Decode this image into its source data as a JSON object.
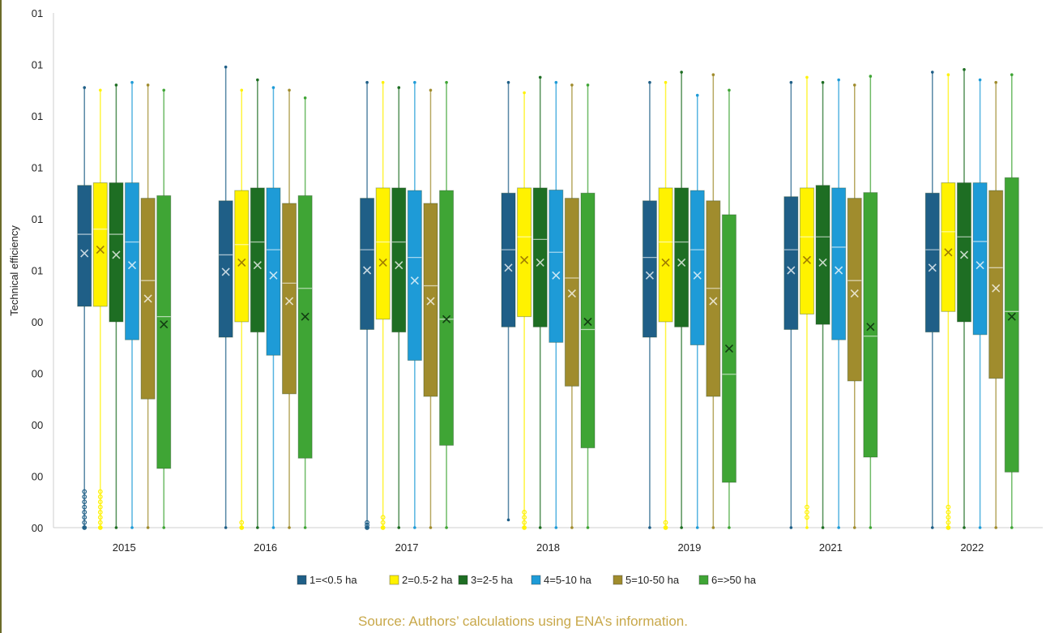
{
  "colors": {
    "axis": "#cfcfcf",
    "text": "#222222",
    "source": "#c8a84a"
  },
  "source_note": "Source: Authors’ calculations using ENA’s information.",
  "chart_data": {
    "type": "boxplot",
    "title": "",
    "xlabel": "",
    "ylabel": "Technical efficiency",
    "ylim": [
      0,
      1
    ],
    "ytick_labels": [
      "00",
      "00",
      "00",
      "00",
      "00",
      "01",
      "01",
      "01",
      "01",
      "01",
      "01"
    ],
    "legend_position": "bottom",
    "categories": [
      "2015",
      "2016",
      "2017",
      "2018",
      "2019",
      "2021",
      "2022"
    ],
    "series": [
      {
        "name": "1=<0.5 ha",
        "color": "#1f5f87",
        "stats": [
          {
            "min": 0.0,
            "q1": 0.43,
            "median": 0.57,
            "q3": 0.665,
            "max": 0.855,
            "mean": 0.533,
            "outliers": [
              0.0,
              0.01,
              0.02,
              0.03,
              0.04,
              0.05,
              0.06,
              0.07
            ]
          },
          {
            "min": 0.0,
            "q1": 0.37,
            "median": 0.53,
            "q3": 0.635,
            "max": 0.895,
            "mean": 0.497,
            "outliers": []
          },
          {
            "min": 0.0,
            "q1": 0.385,
            "median": 0.54,
            "q3": 0.64,
            "max": 0.865,
            "mean": 0.5,
            "outliers": [
              0.0,
              0.005,
              0.01
            ]
          },
          {
            "min": 0.015,
            "q1": 0.39,
            "median": 0.54,
            "q3": 0.65,
            "max": 0.865,
            "mean": 0.505,
            "outliers": []
          },
          {
            "min": 0.0,
            "q1": 0.37,
            "median": 0.525,
            "q3": 0.635,
            "max": 0.865,
            "mean": 0.49,
            "outliers": []
          },
          {
            "min": 0.0,
            "q1": 0.385,
            "median": 0.54,
            "q3": 0.643,
            "max": 0.865,
            "mean": 0.5,
            "outliers": []
          },
          {
            "min": 0.0,
            "q1": 0.38,
            "median": 0.54,
            "q3": 0.65,
            "max": 0.885,
            "mean": 0.505,
            "outliers": []
          }
        ]
      },
      {
        "name": "2=0.5-2 ha",
        "color": "#fff200",
        "stats": [
          {
            "min": 0.0,
            "q1": 0.43,
            "median": 0.58,
            "q3": 0.67,
            "max": 0.85,
            "mean": 0.54,
            "outliers": [
              0.0,
              0.01,
              0.02,
              0.03,
              0.04,
              0.05,
              0.06,
              0.07
            ]
          },
          {
            "min": 0.0,
            "q1": 0.4,
            "median": 0.55,
            "q3": 0.655,
            "max": 0.85,
            "mean": 0.515,
            "outliers": [
              0.0,
              0.01
            ]
          },
          {
            "min": 0.0,
            "q1": 0.405,
            "median": 0.555,
            "q3": 0.66,
            "max": 0.865,
            "mean": 0.515,
            "outliers": [
              0.0,
              0.01,
              0.02
            ]
          },
          {
            "min": 0.0,
            "q1": 0.41,
            "median": 0.565,
            "q3": 0.66,
            "max": 0.845,
            "mean": 0.52,
            "outliers": [
              0.0,
              0.01,
              0.02,
              0.03
            ]
          },
          {
            "min": 0.0,
            "q1": 0.4,
            "median": 0.555,
            "q3": 0.66,
            "max": 0.865,
            "mean": 0.515,
            "outliers": [
              0.0,
              0.01
            ]
          },
          {
            "min": 0.0,
            "q1": 0.415,
            "median": 0.565,
            "q3": 0.66,
            "max": 0.875,
            "mean": 0.52,
            "outliers": [
              0.02,
              0.03,
              0.04
            ]
          },
          {
            "min": 0.0,
            "q1": 0.42,
            "median": 0.575,
            "q3": 0.67,
            "max": 0.88,
            "mean": 0.535,
            "outliers": [
              0.0,
              0.01,
              0.02,
              0.03,
              0.04
            ]
          }
        ]
      },
      {
        "name": "3=2-5 ha",
        "color": "#1e6e23",
        "stats": [
          {
            "min": 0.0,
            "q1": 0.4,
            "median": 0.57,
            "q3": 0.67,
            "max": 0.86,
            "mean": 0.53,
            "outliers": []
          },
          {
            "min": 0.0,
            "q1": 0.38,
            "median": 0.555,
            "q3": 0.66,
            "max": 0.87,
            "mean": 0.51,
            "outliers": []
          },
          {
            "min": 0.0,
            "q1": 0.38,
            "median": 0.555,
            "q3": 0.66,
            "max": 0.855,
            "mean": 0.51,
            "outliers": []
          },
          {
            "min": 0.0,
            "q1": 0.39,
            "median": 0.56,
            "q3": 0.66,
            "max": 0.875,
            "mean": 0.515,
            "outliers": []
          },
          {
            "min": 0.0,
            "q1": 0.39,
            "median": 0.555,
            "q3": 0.66,
            "max": 0.885,
            "mean": 0.515,
            "outliers": []
          },
          {
            "min": 0.0,
            "q1": 0.395,
            "median": 0.565,
            "q3": 0.665,
            "max": 0.865,
            "mean": 0.515,
            "outliers": []
          },
          {
            "min": 0.0,
            "q1": 0.4,
            "median": 0.565,
            "q3": 0.67,
            "max": 0.89,
            "mean": 0.53,
            "outliers": []
          }
        ]
      },
      {
        "name": "4=5-10 ha",
        "color": "#1e9bd7",
        "stats": [
          {
            "min": 0.0,
            "q1": 0.365,
            "median": 0.555,
            "q3": 0.67,
            "max": 0.865,
            "mean": 0.51,
            "outliers": []
          },
          {
            "min": 0.0,
            "q1": 0.335,
            "median": 0.54,
            "q3": 0.66,
            "max": 0.855,
            "mean": 0.49,
            "outliers": []
          },
          {
            "min": 0.0,
            "q1": 0.325,
            "median": 0.525,
            "q3": 0.655,
            "max": 0.865,
            "mean": 0.48,
            "outliers": []
          },
          {
            "min": 0.0,
            "q1": 0.36,
            "median": 0.535,
            "q3": 0.656,
            "max": 0.865,
            "mean": 0.49,
            "outliers": []
          },
          {
            "min": 0.0,
            "q1": 0.355,
            "median": 0.54,
            "q3": 0.655,
            "max": 0.84,
            "mean": 0.49,
            "outliers": []
          },
          {
            "min": 0.0,
            "q1": 0.365,
            "median": 0.545,
            "q3": 0.66,
            "max": 0.87,
            "mean": 0.5,
            "outliers": []
          },
          {
            "min": 0.0,
            "q1": 0.375,
            "median": 0.556,
            "q3": 0.67,
            "max": 0.87,
            "mean": 0.51,
            "outliers": []
          }
        ]
      },
      {
        "name": "5=10-50 ha",
        "color": "#a08c2d",
        "stats": [
          {
            "min": 0.0,
            "q1": 0.25,
            "median": 0.48,
            "q3": 0.64,
            "max": 0.86,
            "mean": 0.445,
            "outliers": []
          },
          {
            "min": 0.0,
            "q1": 0.26,
            "median": 0.475,
            "q3": 0.63,
            "max": 0.85,
            "mean": 0.44,
            "outliers": []
          },
          {
            "min": 0.0,
            "q1": 0.255,
            "median": 0.47,
            "q3": 0.63,
            "max": 0.85,
            "mean": 0.44,
            "outliers": []
          },
          {
            "min": 0.0,
            "q1": 0.275,
            "median": 0.485,
            "q3": 0.64,
            "max": 0.86,
            "mean": 0.455,
            "outliers": []
          },
          {
            "min": 0.0,
            "q1": 0.255,
            "median": 0.465,
            "q3": 0.635,
            "max": 0.88,
            "mean": 0.44,
            "outliers": []
          },
          {
            "min": 0.0,
            "q1": 0.285,
            "median": 0.48,
            "q3": 0.64,
            "max": 0.86,
            "mean": 0.455,
            "outliers": []
          },
          {
            "min": 0.0,
            "q1": 0.29,
            "median": 0.505,
            "q3": 0.655,
            "max": 0.865,
            "mean": 0.465,
            "outliers": []
          }
        ]
      },
      {
        "name": "6=>50 ha",
        "color": "#3fa535",
        "stats": [
          {
            "min": 0.0,
            "q1": 0.115,
            "median": 0.41,
            "q3": 0.645,
            "max": 0.85,
            "mean": 0.395,
            "outliers": []
          },
          {
            "min": 0.0,
            "q1": 0.135,
            "median": 0.465,
            "q3": 0.645,
            "max": 0.835,
            "mean": 0.41,
            "outliers": []
          },
          {
            "min": 0.0,
            "q1": 0.16,
            "median": 0.405,
            "q3": 0.655,
            "max": 0.865,
            "mean": 0.405,
            "outliers": []
          },
          {
            "min": 0.0,
            "q1": 0.155,
            "median": 0.385,
            "q3": 0.65,
            "max": 0.86,
            "mean": 0.4,
            "outliers": []
          },
          {
            "min": 0.0,
            "q1": 0.088,
            "median": 0.298,
            "q3": 0.608,
            "max": 0.85,
            "mean": 0.348,
            "outliers": []
          },
          {
            "min": 0.0,
            "q1": 0.137,
            "median": 0.372,
            "q3": 0.651,
            "max": 0.877,
            "mean": 0.39,
            "outliers": []
          },
          {
            "min": 0.0,
            "q1": 0.108,
            "median": 0.42,
            "q3": 0.68,
            "max": 0.88,
            "mean": 0.41,
            "outliers": []
          }
        ]
      }
    ]
  }
}
